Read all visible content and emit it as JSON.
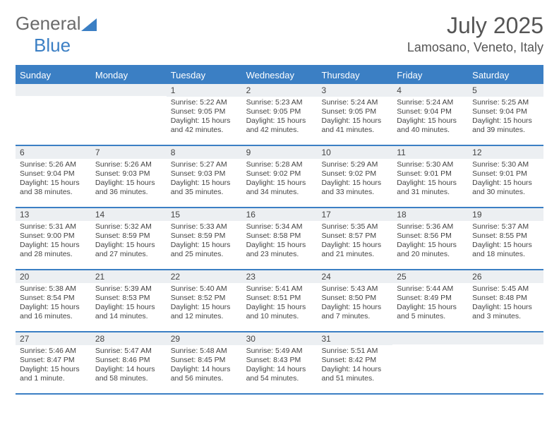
{
  "logo": {
    "text_general": "General",
    "text_blue": "Blue",
    "accent_color": "#3b7fc4"
  },
  "title": {
    "month_year": "July 2025",
    "location": "Lamosano, Veneto, Italy"
  },
  "colors": {
    "header_bg": "#3b7fc4",
    "header_fg": "#ffffff",
    "daynum_bg": "#eceff2",
    "border": "#3b7fc4",
    "text": "#444444",
    "title_text": "#555555",
    "page_bg": "#ffffff"
  },
  "typography": {
    "month_fontsize": 32,
    "location_fontsize": 18,
    "dow_fontsize": 13,
    "daynum_fontsize": 12,
    "body_fontsize": 10.5
  },
  "calendar": {
    "type": "table",
    "days_of_week": [
      "Sunday",
      "Monday",
      "Tuesday",
      "Wednesday",
      "Thursday",
      "Friday",
      "Saturday"
    ],
    "weeks": [
      [
        null,
        null,
        {
          "n": "1",
          "sunrise": "Sunrise: 5:22 AM",
          "sunset": "Sunset: 9:05 PM",
          "daylight": "Daylight: 15 hours and 42 minutes."
        },
        {
          "n": "2",
          "sunrise": "Sunrise: 5:23 AM",
          "sunset": "Sunset: 9:05 PM",
          "daylight": "Daylight: 15 hours and 42 minutes."
        },
        {
          "n": "3",
          "sunrise": "Sunrise: 5:24 AM",
          "sunset": "Sunset: 9:05 PM",
          "daylight": "Daylight: 15 hours and 41 minutes."
        },
        {
          "n": "4",
          "sunrise": "Sunrise: 5:24 AM",
          "sunset": "Sunset: 9:04 PM",
          "daylight": "Daylight: 15 hours and 40 minutes."
        },
        {
          "n": "5",
          "sunrise": "Sunrise: 5:25 AM",
          "sunset": "Sunset: 9:04 PM",
          "daylight": "Daylight: 15 hours and 39 minutes."
        }
      ],
      [
        {
          "n": "6",
          "sunrise": "Sunrise: 5:26 AM",
          "sunset": "Sunset: 9:04 PM",
          "daylight": "Daylight: 15 hours and 38 minutes."
        },
        {
          "n": "7",
          "sunrise": "Sunrise: 5:26 AM",
          "sunset": "Sunset: 9:03 PM",
          "daylight": "Daylight: 15 hours and 36 minutes."
        },
        {
          "n": "8",
          "sunrise": "Sunrise: 5:27 AM",
          "sunset": "Sunset: 9:03 PM",
          "daylight": "Daylight: 15 hours and 35 minutes."
        },
        {
          "n": "9",
          "sunrise": "Sunrise: 5:28 AM",
          "sunset": "Sunset: 9:02 PM",
          "daylight": "Daylight: 15 hours and 34 minutes."
        },
        {
          "n": "10",
          "sunrise": "Sunrise: 5:29 AM",
          "sunset": "Sunset: 9:02 PM",
          "daylight": "Daylight: 15 hours and 33 minutes."
        },
        {
          "n": "11",
          "sunrise": "Sunrise: 5:30 AM",
          "sunset": "Sunset: 9:01 PM",
          "daylight": "Daylight: 15 hours and 31 minutes."
        },
        {
          "n": "12",
          "sunrise": "Sunrise: 5:30 AM",
          "sunset": "Sunset: 9:01 PM",
          "daylight": "Daylight: 15 hours and 30 minutes."
        }
      ],
      [
        {
          "n": "13",
          "sunrise": "Sunrise: 5:31 AM",
          "sunset": "Sunset: 9:00 PM",
          "daylight": "Daylight: 15 hours and 28 minutes."
        },
        {
          "n": "14",
          "sunrise": "Sunrise: 5:32 AM",
          "sunset": "Sunset: 8:59 PM",
          "daylight": "Daylight: 15 hours and 27 minutes."
        },
        {
          "n": "15",
          "sunrise": "Sunrise: 5:33 AM",
          "sunset": "Sunset: 8:59 PM",
          "daylight": "Daylight: 15 hours and 25 minutes."
        },
        {
          "n": "16",
          "sunrise": "Sunrise: 5:34 AM",
          "sunset": "Sunset: 8:58 PM",
          "daylight": "Daylight: 15 hours and 23 minutes."
        },
        {
          "n": "17",
          "sunrise": "Sunrise: 5:35 AM",
          "sunset": "Sunset: 8:57 PM",
          "daylight": "Daylight: 15 hours and 21 minutes."
        },
        {
          "n": "18",
          "sunrise": "Sunrise: 5:36 AM",
          "sunset": "Sunset: 8:56 PM",
          "daylight": "Daylight: 15 hours and 20 minutes."
        },
        {
          "n": "19",
          "sunrise": "Sunrise: 5:37 AM",
          "sunset": "Sunset: 8:55 PM",
          "daylight": "Daylight: 15 hours and 18 minutes."
        }
      ],
      [
        {
          "n": "20",
          "sunrise": "Sunrise: 5:38 AM",
          "sunset": "Sunset: 8:54 PM",
          "daylight": "Daylight: 15 hours and 16 minutes."
        },
        {
          "n": "21",
          "sunrise": "Sunrise: 5:39 AM",
          "sunset": "Sunset: 8:53 PM",
          "daylight": "Daylight: 15 hours and 14 minutes."
        },
        {
          "n": "22",
          "sunrise": "Sunrise: 5:40 AM",
          "sunset": "Sunset: 8:52 PM",
          "daylight": "Daylight: 15 hours and 12 minutes."
        },
        {
          "n": "23",
          "sunrise": "Sunrise: 5:41 AM",
          "sunset": "Sunset: 8:51 PM",
          "daylight": "Daylight: 15 hours and 10 minutes."
        },
        {
          "n": "24",
          "sunrise": "Sunrise: 5:43 AM",
          "sunset": "Sunset: 8:50 PM",
          "daylight": "Daylight: 15 hours and 7 minutes."
        },
        {
          "n": "25",
          "sunrise": "Sunrise: 5:44 AM",
          "sunset": "Sunset: 8:49 PM",
          "daylight": "Daylight: 15 hours and 5 minutes."
        },
        {
          "n": "26",
          "sunrise": "Sunrise: 5:45 AM",
          "sunset": "Sunset: 8:48 PM",
          "daylight": "Daylight: 15 hours and 3 minutes."
        }
      ],
      [
        {
          "n": "27",
          "sunrise": "Sunrise: 5:46 AM",
          "sunset": "Sunset: 8:47 PM",
          "daylight": "Daylight: 15 hours and 1 minute."
        },
        {
          "n": "28",
          "sunrise": "Sunrise: 5:47 AM",
          "sunset": "Sunset: 8:46 PM",
          "daylight": "Daylight: 14 hours and 58 minutes."
        },
        {
          "n": "29",
          "sunrise": "Sunrise: 5:48 AM",
          "sunset": "Sunset: 8:45 PM",
          "daylight": "Daylight: 14 hours and 56 minutes."
        },
        {
          "n": "30",
          "sunrise": "Sunrise: 5:49 AM",
          "sunset": "Sunset: 8:43 PM",
          "daylight": "Daylight: 14 hours and 54 minutes."
        },
        {
          "n": "31",
          "sunrise": "Sunrise: 5:51 AM",
          "sunset": "Sunset: 8:42 PM",
          "daylight": "Daylight: 14 hours and 51 minutes."
        },
        null,
        null
      ]
    ]
  }
}
